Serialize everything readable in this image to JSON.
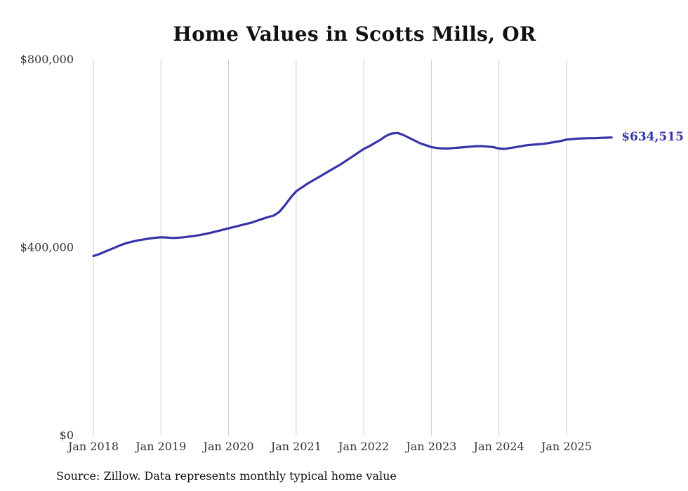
{
  "chart": {
    "background_color": "#ffffff",
    "grid_color": "#cccccc",
    "tick_text_color": "#333333"
  },
  "chart_data": {
    "type": "line",
    "title": "Home Values in Scotts Mills, OR",
    "source_note": "Source: Zillow. Data represents monthly typical home value",
    "series_name": "Monthly typical home value",
    "x_start": "Jan 2018",
    "frequency": "monthly",
    "x_tick_labels": [
      "Jan 2018",
      "Jan 2019",
      "Jan 2020",
      "Jan 2021",
      "Jan 2022",
      "Jan 2023",
      "Jan 2024",
      "Jan 2025"
    ],
    "y_ticks": [
      0,
      400000,
      800000
    ],
    "y_tick_labels": [
      "$0",
      "$400,000",
      "$800,000"
    ],
    "ylim": [
      0,
      800000
    ],
    "grid": "vertical-only",
    "legend": "none",
    "line_color": "#3734a8",
    "annotation": "$634,515",
    "final_value": 634515,
    "values": [
      382000,
      386000,
      391000,
      396000,
      401000,
      406000,
      410000,
      413000,
      415500,
      417500,
      419500,
      421000,
      422000,
      421500,
      420500,
      421000,
      422000,
      423500,
      425000,
      427000,
      429500,
      432000,
      435000,
      438000,
      441000,
      444000,
      447000,
      450000,
      453000,
      457000,
      461000,
      465000,
      468000,
      476000,
      490000,
      506000,
      520000,
      528000,
      536000,
      543000,
      550000,
      557000,
      564000,
      571000,
      578000,
      586000,
      594000,
      602000,
      610000,
      616000,
      623000,
      630000,
      638000,
      643000,
      644000,
      640000,
      634000,
      628000,
      622000,
      618000,
      614000,
      612000,
      611000,
      611000,
      612000,
      613000,
      614000,
      615000,
      616000,
      616000,
      615000,
      614000,
      611000,
      610000,
      612000,
      614000,
      616000,
      618000,
      619000,
      620000,
      621000,
      623000,
      625000,
      627000,
      630000,
      631000,
      632000,
      632500,
      633000,
      633000,
      633500,
      634000,
      634515
    ]
  }
}
